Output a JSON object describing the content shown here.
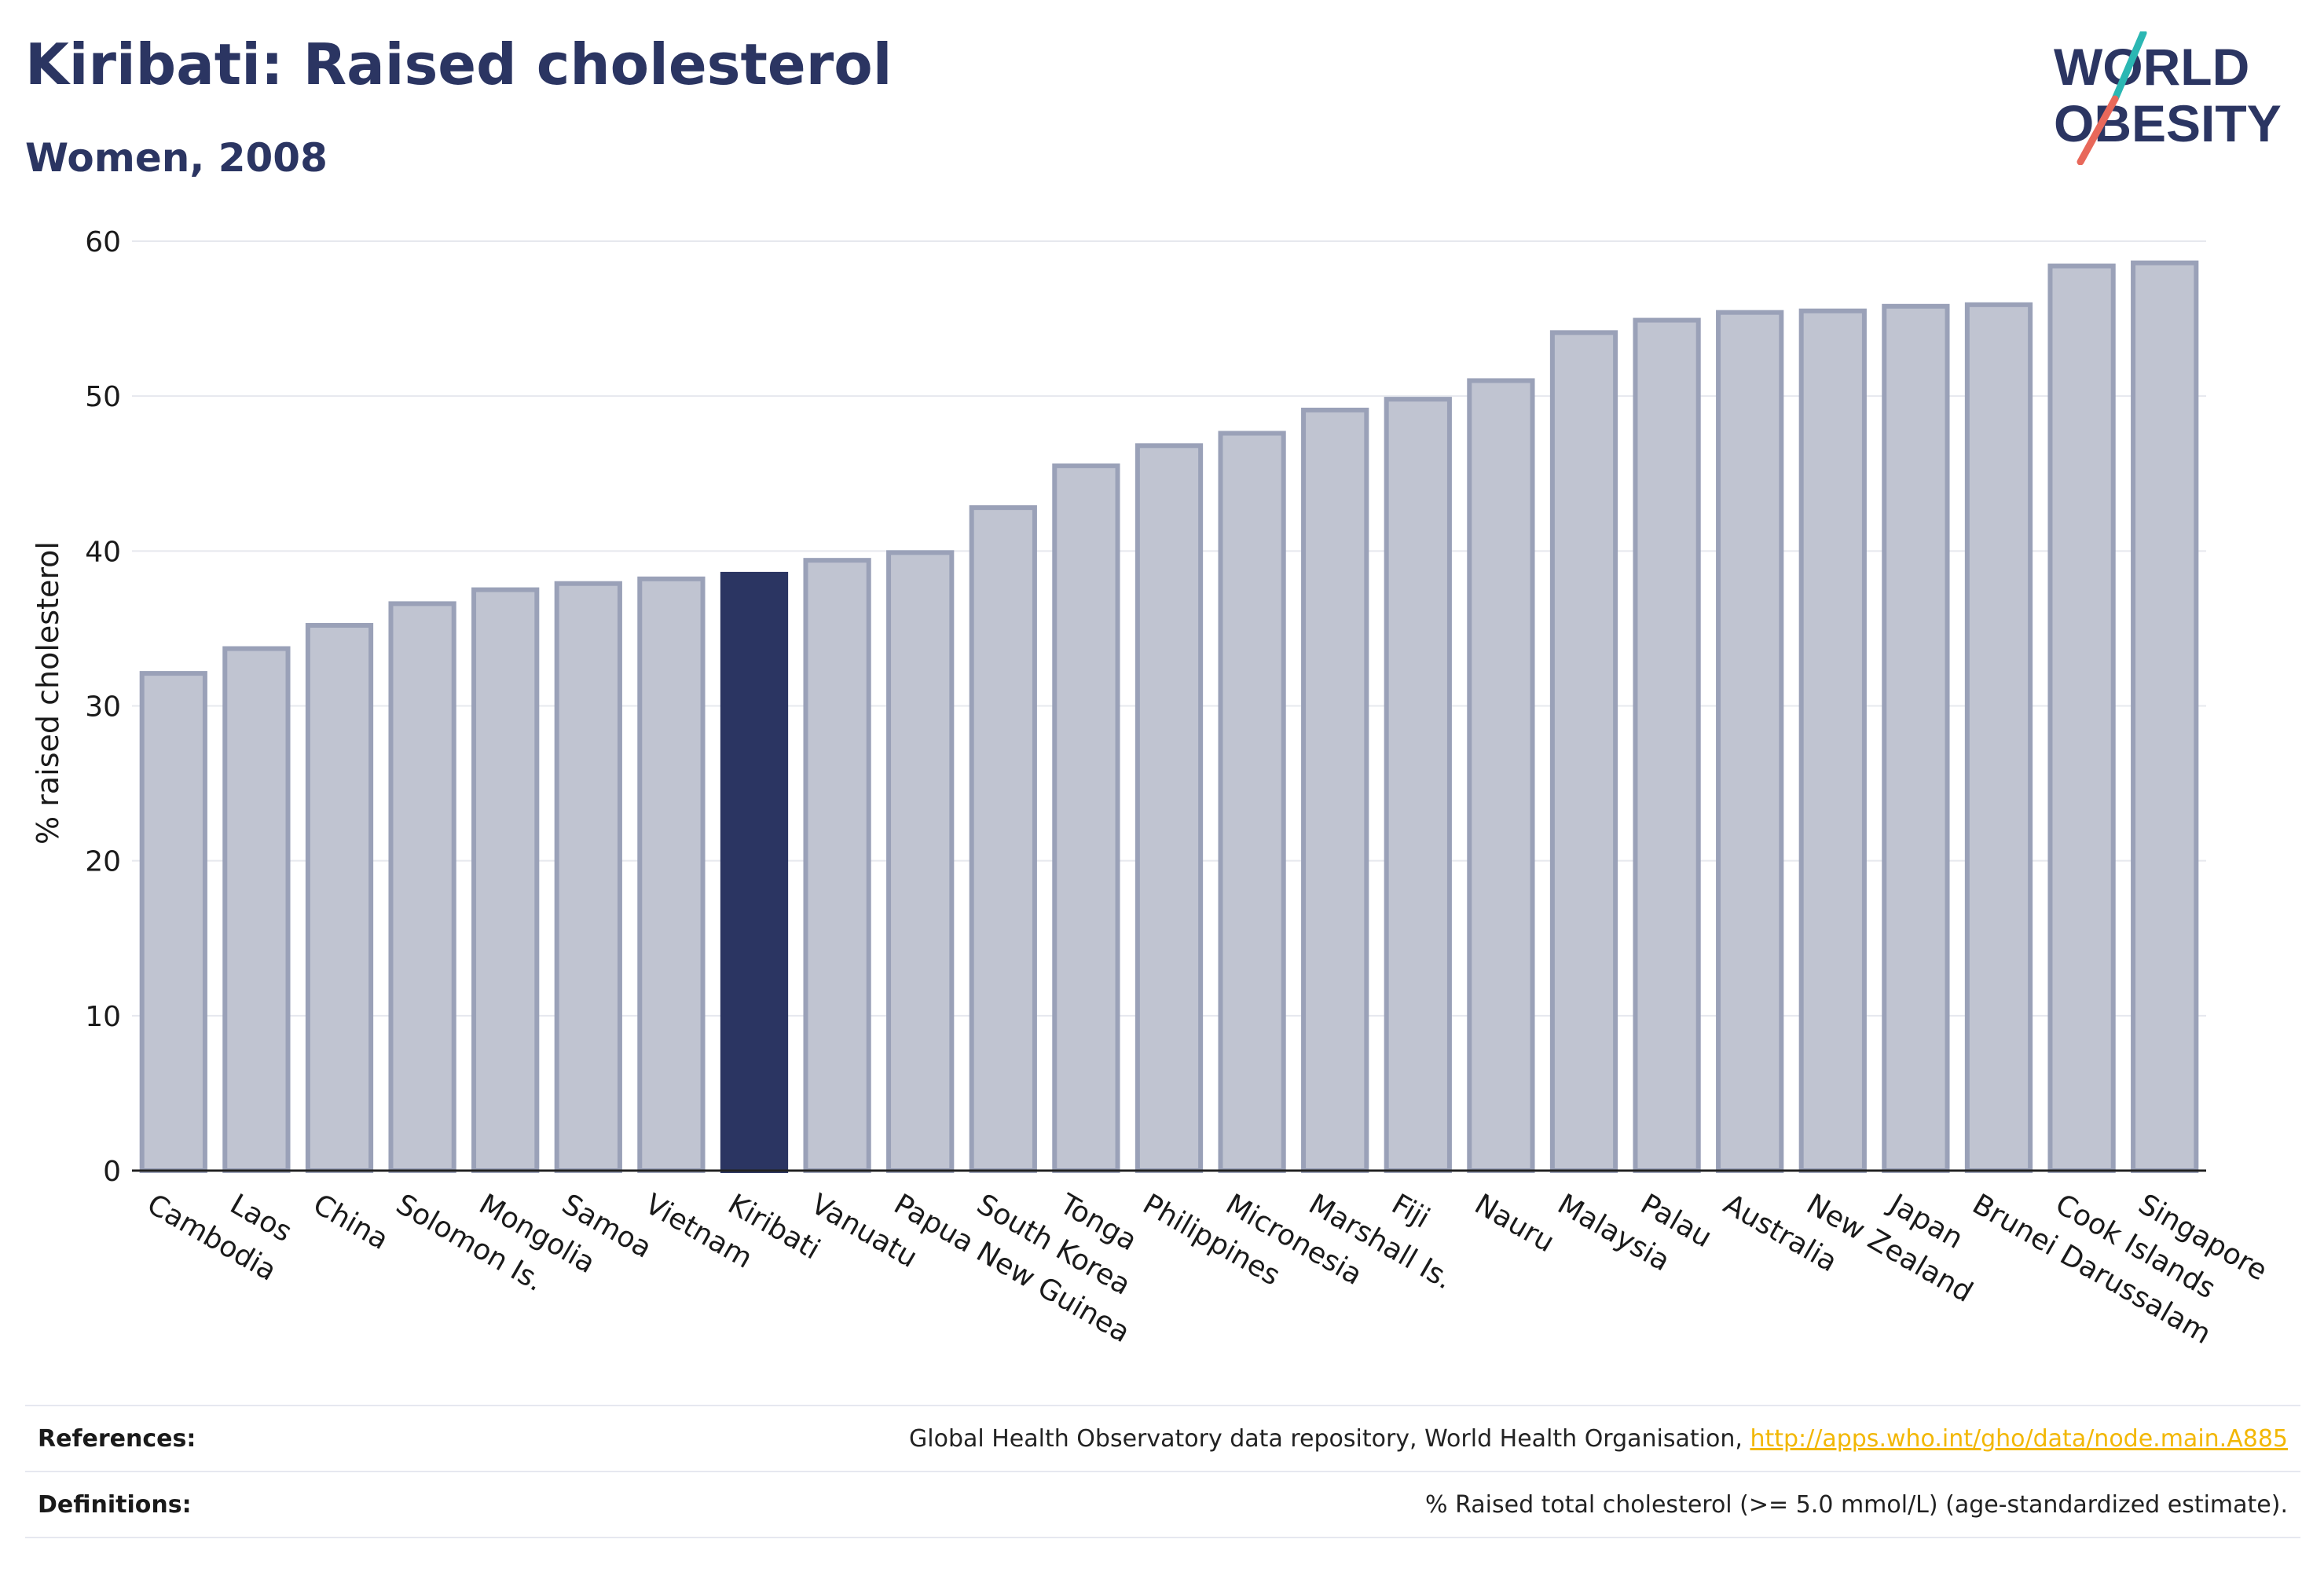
{
  "header": {
    "title": "Kiribati: Raised cholesterol",
    "subtitle": "Women, 2008"
  },
  "logo": {
    "line1": "WORLD",
    "line2": "OBESITY",
    "colors": {
      "text": "#2b3562",
      "accent_teal": "#2bb7b3",
      "accent_coral": "#e8685a"
    }
  },
  "chart_data": {
    "type": "bar",
    "ylabel": "% raised cholesterol",
    "ylim": [
      0,
      60
    ],
    "yticks": [
      0,
      10,
      20,
      30,
      40,
      50,
      60
    ],
    "grid": true,
    "highlight": "Kiribati",
    "colors": {
      "bar": "#c0c4d1",
      "bar_edge": "#9aa1b8",
      "highlight": "#2b3562"
    },
    "categories": [
      "Cambodia",
      "Laos",
      "China",
      "Solomon Is.",
      "Mongolia",
      "Samoa",
      "Vietnam",
      "Kiribati",
      "Vanuatu",
      "Papua New Guinea",
      "South Korea",
      "Tonga",
      "Philippines",
      "Micronesia",
      "Marshall Is.",
      "Fiji",
      "Nauru",
      "Malaysia",
      "Palau",
      "Australia",
      "New Zealand",
      "Japan",
      "Brunei Darussalam",
      "Cook Islands",
      "Singapore"
    ],
    "values": [
      32.1,
      33.7,
      35.2,
      36.6,
      37.5,
      37.9,
      38.2,
      38.5,
      39.4,
      39.9,
      42.8,
      45.5,
      46.8,
      47.6,
      49.1,
      49.8,
      51.0,
      54.1,
      54.9,
      55.4,
      55.5,
      55.8,
      55.9,
      58.4,
      58.6
    ]
  },
  "footer": {
    "references_label": "References:",
    "references_text": "Global Health Observatory data repository, World Health Organisation, ",
    "references_link": "http://apps.who.int/gho/data/node.main.A885",
    "definitions_label": "Definitions:",
    "definitions_text": "% Raised total cholesterol (>= 5.0 mmol/L) (age-standardized estimate)."
  }
}
